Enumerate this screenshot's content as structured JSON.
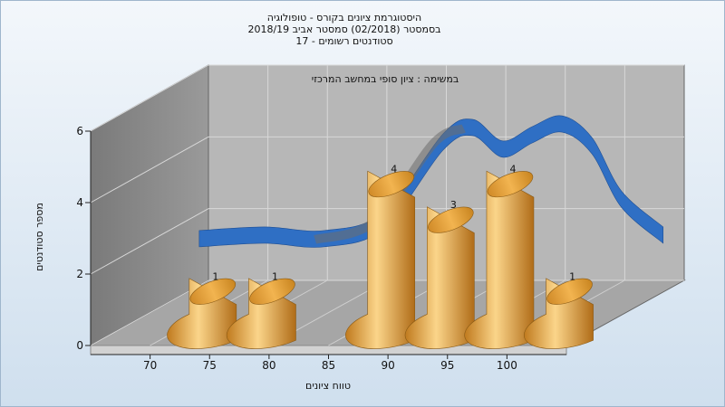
{
  "chart_data": {
    "type": "bar",
    "title_lines": [
      "היסטוגרמת ציונים בקורס - טופולוגיה",
      "בסמסטר  (02/2018)  סמסטר אביב 2018/19",
      "סטודנטים רשומים - 17"
    ],
    "subtitle": "במשימה : ציון סופי במחשב המרכזי",
    "xlabel": "טווח ציונים",
    "ylabel": "מספר סטודנטים",
    "x_ticks": [
      "70",
      "75",
      "80",
      "85",
      "90",
      "95",
      "100"
    ],
    "y_ticks": [
      "0",
      "2",
      "4",
      "6"
    ],
    "ylim": [
      0,
      6
    ],
    "bars": [
      {
        "x": 72.5,
        "value": 1,
        "label": "1"
      },
      {
        "x": 77.5,
        "value": 1,
        "label": "1"
      },
      {
        "x": 87.5,
        "value": 4,
        "label": "4"
      },
      {
        "x": 92.5,
        "value": 3,
        "label": "3"
      },
      {
        "x": 97.5,
        "value": 4,
        "label": "4"
      },
      {
        "x": 102.5,
        "value": 1,
        "label": "1"
      }
    ],
    "curve_series": {
      "type": "ribbon",
      "x": [
        67,
        72.5,
        77.5,
        82.5,
        87.5,
        90,
        92.5,
        95,
        97.5,
        100,
        102.5,
        106
      ],
      "values": [
        1.9,
        2.0,
        1.9,
        2.4,
        4.6,
        5.0,
        4.4,
        4.8,
        5.1,
        4.5,
        3.0,
        2.0
      ]
    },
    "grid": true,
    "colors": {
      "bar": "#e8a23c",
      "ribbon": "#2f6fc4",
      "back_wall": "#b6b6b6",
      "side_wall": "#8e8e8e",
      "floor": "#a4a4a4"
    }
  }
}
